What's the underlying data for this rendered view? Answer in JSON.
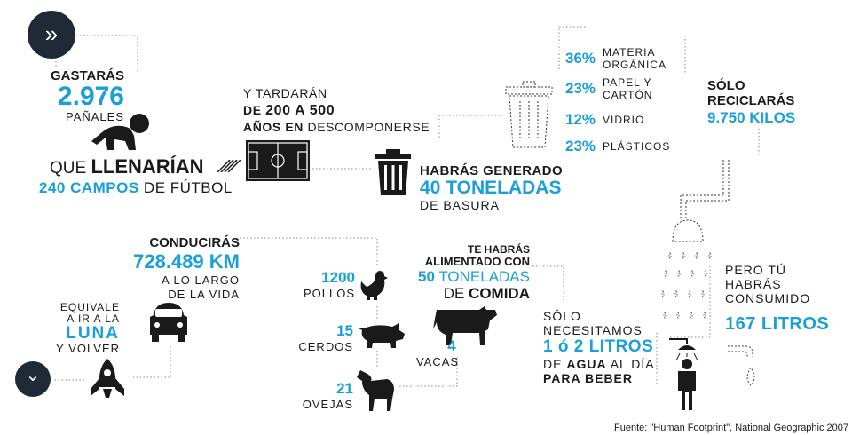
{
  "colors": {
    "accent": "#1a9fd9",
    "dark": "#1f2a36",
    "text": "#1a1a1a",
    "dotted": "#888888"
  },
  "nav": {
    "next_icon": "double-chevron-right-icon",
    "down_icon": "chevron-down-icon",
    "next_glyph": "»",
    "down_glyph": "⌄"
  },
  "diapers": {
    "l1": "GASTARÁS",
    "num": "2.976",
    "l3": "PAÑALES",
    "fill_a": "QUE ",
    "fill_b": "LLENARÍAN",
    "fields_num": "240 CAMPOS",
    "fields_rest": " DE FÚTBOL"
  },
  "decompose": {
    "l1": "Y TARDARÁN",
    "l2a": "DE ",
    "l2b": "200 A 500",
    "l3a": "AÑOS EN",
    "l3b": " DESCOMPONERSE"
  },
  "garbage": {
    "l1": "HABRÁS GENERADO",
    "l2": "40 TONELADAS",
    "l3": "DE BASURA"
  },
  "composition": [
    {
      "pct": "36%",
      "label": "MATERIA ORGÁNICA"
    },
    {
      "pct": "23%",
      "label": "PAPEL Y CARTÓN"
    },
    {
      "pct": "12%",
      "label": "VIDRIO"
    },
    {
      "pct": "23%",
      "label": "PLÁSTICOS"
    }
  ],
  "recycle": {
    "l1": "SÓLO",
    "l2": "RECICLARÁS",
    "l3": "9.750 KILOS"
  },
  "drive": {
    "l1": "CONDUCIRÁS",
    "l2": "728.489 KM",
    "l3": "A LO LARGO",
    "l4": "DE LA VIDA"
  },
  "moon": {
    "l1": "EQUIVALE",
    "l2": "A IR A LA",
    "l3": "LUNA",
    "l4": "Y VOLVER"
  },
  "animals": [
    {
      "num": "1200",
      "label": "POLLOS"
    },
    {
      "num": "15",
      "label": "CERDOS"
    },
    {
      "num": "21",
      "label": "OVEJAS"
    },
    {
      "num": "4",
      "label": "VACAS"
    }
  ],
  "food": {
    "l1": "TE HABRÁS",
    "l2": "ALIMENTADO CON",
    "l3a": "50",
    "l3b": " TONELADAS",
    "l4a": "DE ",
    "l4b": "COMIDA"
  },
  "water_drink": {
    "l1": "SÓLO",
    "l2": "NECESITAMOS",
    "l3": "1 ó 2 LITROS",
    "l4a": "DE ",
    "l4b": "AGUA",
    "l4c": " AL DÍA",
    "l5": "PARA BEBER"
  },
  "water_total": {
    "l1": "PERO TÚ",
    "l2": "HABRÁS",
    "l3": "CONSUMIDO",
    "l4": "167 LITROS"
  },
  "source": "Fuente: \"Human Footprint\", National Geographic 2007"
}
